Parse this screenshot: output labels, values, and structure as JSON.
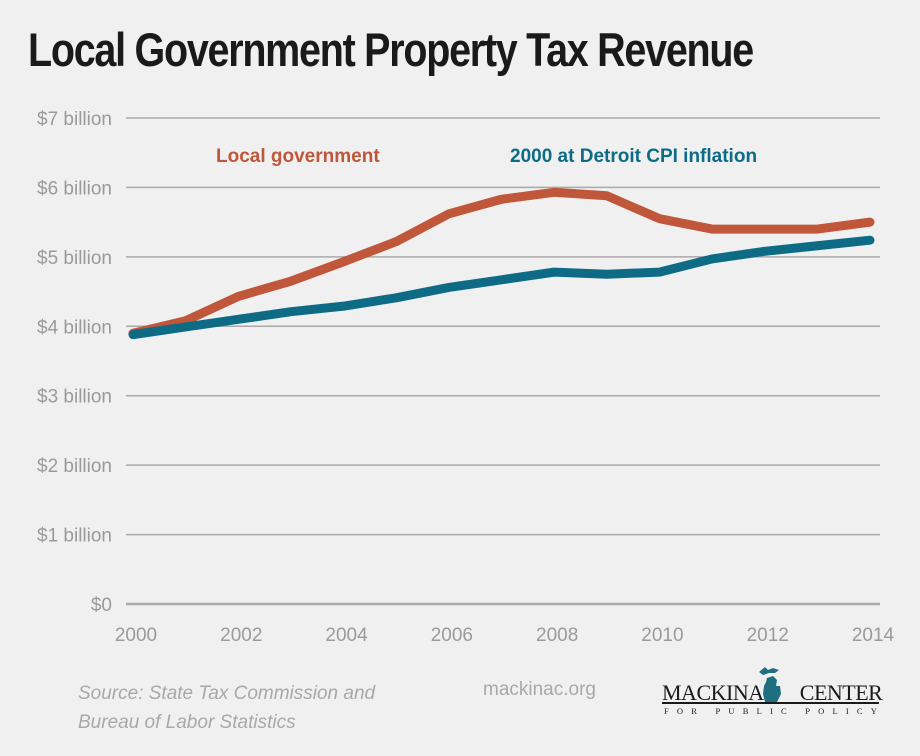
{
  "chart_data": {
    "type": "line",
    "title": "Local Government Property Tax Revenue",
    "xlabel": "",
    "ylabel": "",
    "x": [
      2000,
      2001,
      2002,
      2003,
      2004,
      2005,
      2006,
      2007,
      2008,
      2009,
      2010,
      2011,
      2012,
      2013,
      2014
    ],
    "x_tick_labels": [
      "2000",
      "2002",
      "2004",
      "2006",
      "2008",
      "2010",
      "2012",
      "2014"
    ],
    "x_ticks": [
      2000,
      2002,
      2004,
      2006,
      2008,
      2010,
      2012,
      2014
    ],
    "y_ticks": [
      0,
      1,
      2,
      3,
      4,
      5,
      6,
      7
    ],
    "y_tick_labels": [
      "$0",
      "$1 billion",
      "$2 billion",
      "$3 billion",
      "$4 billion",
      "$5 billion",
      "$6 billion",
      "$7 billion"
    ],
    "ylim": [
      0,
      7
    ],
    "xlim": [
      2000,
      2014
    ],
    "grid": true,
    "legend_placement": "top (inline labels)",
    "series": [
      {
        "name": "Local government",
        "color": "#c0563a",
        "values": [
          3.9,
          4.08,
          4.43,
          4.65,
          4.93,
          5.22,
          5.62,
          5.83,
          5.93,
          5.88,
          5.55,
          5.4,
          5.4,
          5.4,
          5.5
        ]
      },
      {
        "name": "2000 at Detroit CPI inflation",
        "color": "#0d6b86",
        "values": [
          3.88,
          3.99,
          4.1,
          4.21,
          4.29,
          4.41,
          4.56,
          4.67,
          4.78,
          4.75,
          4.78,
          4.97,
          5.08,
          5.16,
          5.24
        ]
      }
    ]
  },
  "footer": {
    "source_line1": "Source: State Tax Commission and",
    "source_line2": "Bureau of Labor Statistics",
    "site": "mackinac.org",
    "logo_name_left": "MACKINAC",
    "logo_name_right": "CENTER",
    "logo_subtitle": "FOR PUBLIC POLICY",
    "logo_color": "#1e6f80"
  }
}
